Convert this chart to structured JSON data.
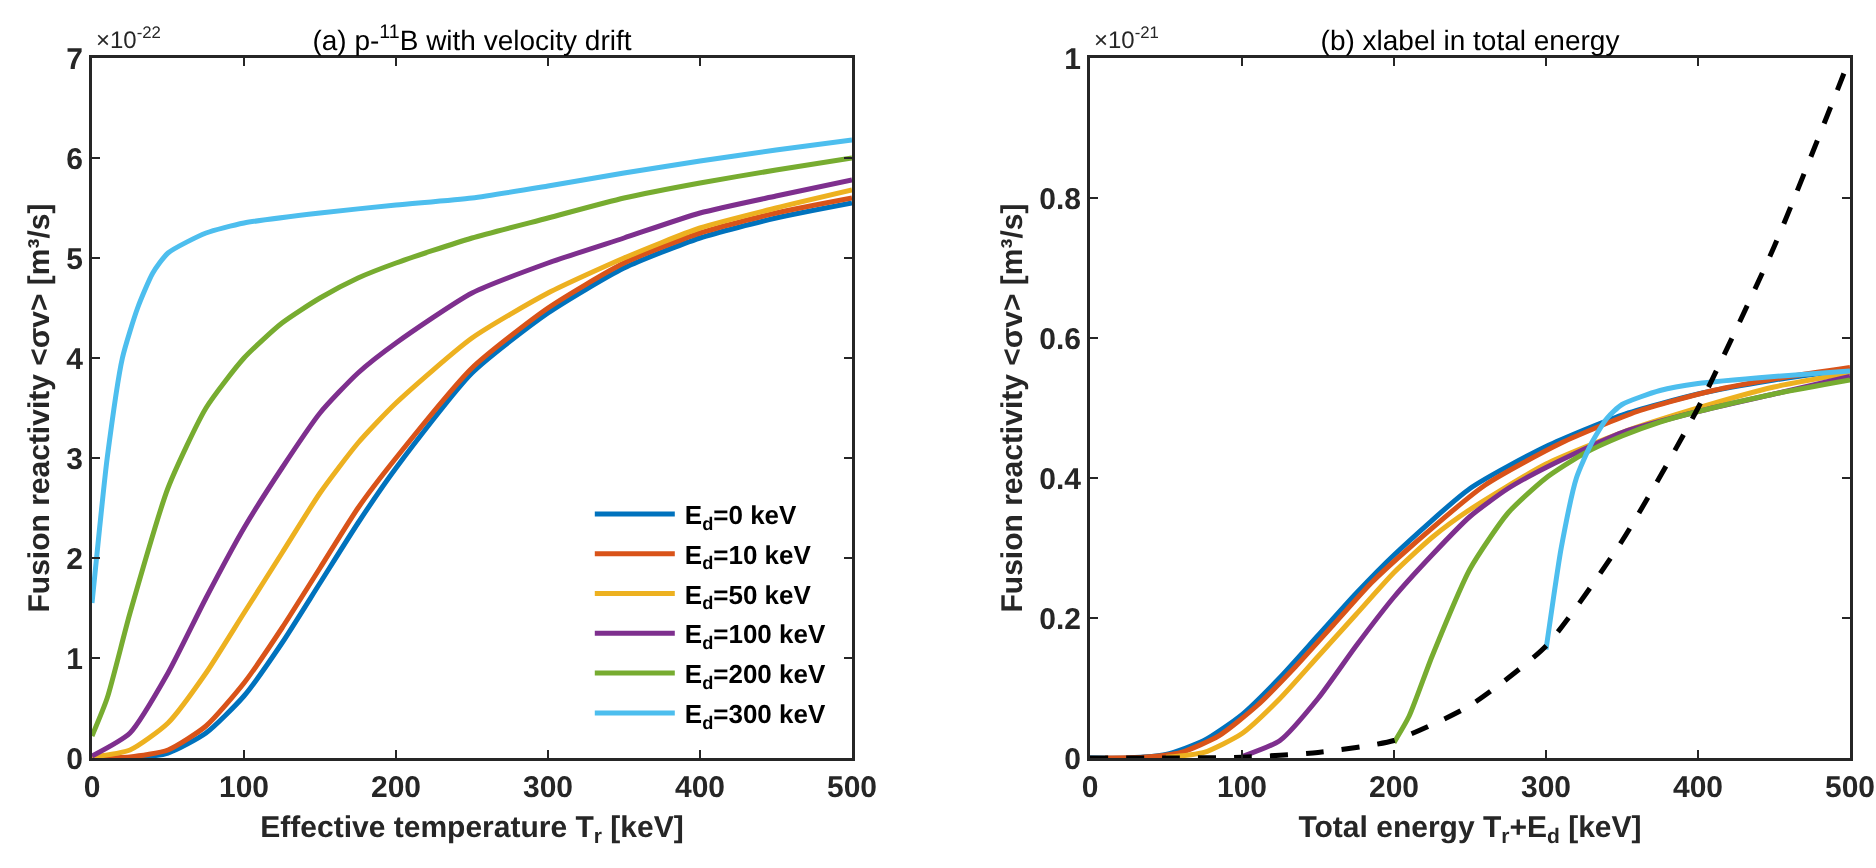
{
  "chart_data": [
    {
      "type": "line",
      "title": "(a) p-$^{11}$B with velocity drift",
      "xlabel": "Effective temperature T$_{r}$ [keV]",
      "ylabel": "Fusion reactivity <σv> [m³/s]",
      "annotations": [
        "×10$^{-22}$"
      ],
      "xlim": [
        0,
        500
      ],
      "xticks": [
        0,
        100,
        200,
        300,
        400,
        500
      ],
      "ylim": [
        0,
        7
      ],
      "yticks": [
        0,
        1,
        2,
        3,
        4,
        5,
        6,
        7
      ],
      "grid": false,
      "legend": "bottom right",
      "line_style": "solid",
      "series": [
        {
          "name": "E$_{d}$=0 keV",
          "color": "#0072bd",
          "x": [
            0,
            25,
            50,
            75,
            100,
            125,
            150,
            175,
            200,
            250,
            300,
            350,
            400,
            450,
            500
          ],
          "values": [
            0,
            0,
            0.05,
            0.25,
            0.62,
            1.15,
            1.75,
            2.35,
            2.9,
            3.85,
            4.45,
            4.9,
            5.2,
            5.4,
            5.55
          ]
        },
        {
          "name": "E$_{d}$=10 keV",
          "color": "#d95319",
          "x": [
            0,
            25,
            50,
            75,
            100,
            125,
            150,
            175,
            200,
            250,
            300,
            350,
            400,
            450,
            500
          ],
          "values": [
            0,
            0.01,
            0.08,
            0.32,
            0.75,
            1.3,
            1.9,
            2.5,
            3.0,
            3.9,
            4.5,
            4.95,
            5.25,
            5.45,
            5.6
          ]
        },
        {
          "name": "E$_{d}$=50 keV",
          "color": "#edb120",
          "x": [
            0,
            25,
            50,
            75,
            100,
            125,
            150,
            175,
            200,
            250,
            300,
            350,
            400,
            450,
            500
          ],
          "values": [
            0.01,
            0.08,
            0.35,
            0.85,
            1.45,
            2.05,
            2.65,
            3.15,
            3.55,
            4.2,
            4.65,
            5.0,
            5.3,
            5.5,
            5.68
          ]
        },
        {
          "name": "E$_{d}$=100 keV",
          "color": "#7e2f8e",
          "x": [
            0,
            25,
            50,
            75,
            100,
            125,
            150,
            175,
            200,
            250,
            300,
            350,
            400,
            450,
            500
          ],
          "values": [
            0.02,
            0.25,
            0.85,
            1.6,
            2.3,
            2.9,
            3.45,
            3.85,
            4.15,
            4.65,
            4.95,
            5.2,
            5.45,
            5.62,
            5.78
          ]
        },
        {
          "name": "E$_{d}$=200 keV",
          "color": "#77ac30",
          "x": [
            0,
            10,
            25,
            50,
            75,
            100,
            125,
            150,
            175,
            200,
            250,
            300,
            350,
            400,
            450,
            500
          ],
          "values": [
            0.22,
            0.6,
            1.45,
            2.7,
            3.5,
            4.0,
            4.35,
            4.6,
            4.8,
            4.95,
            5.2,
            5.4,
            5.6,
            5.75,
            5.88,
            6.0
          ]
        },
        {
          "name": "E$_{d}$=300 keV",
          "color": "#4dbeee",
          "x": [
            0,
            5,
            10,
            20,
            30,
            40,
            50,
            75,
            100,
            150,
            200,
            250,
            300,
            350,
            400,
            450,
            500
          ],
          "values": [
            1.55,
            2.3,
            3.0,
            4.0,
            4.5,
            4.85,
            5.05,
            5.25,
            5.35,
            5.45,
            5.53,
            5.6,
            5.72,
            5.85,
            5.97,
            6.08,
            6.18
          ]
        }
      ]
    },
    {
      "type": "line",
      "title": "(b) xlabel in total energy",
      "xlabel": "Total energy T$_{r}$+E$_{d}$ [keV]",
      "ylabel": "Fusion reactivity <σv> [m³/s]",
      "annotations": [
        "×10$^{-21}$"
      ],
      "xlim": [
        0,
        500
      ],
      "xticks": [
        0,
        100,
        200,
        300,
        400,
        500
      ],
      "ylim": [
        0,
        1
      ],
      "yticks": [
        0,
        0.2,
        0.4,
        0.6,
        0.8,
        1
      ],
      "grid": false,
      "line_style": "solid",
      "series": [
        {
          "color": "#0072bd",
          "x": [
            0,
            25,
            50,
            75,
            100,
            125,
            150,
            175,
            200,
            250,
            300,
            350,
            400,
            450,
            500
          ],
          "values": [
            0,
            0,
            0.005,
            0.025,
            0.062,
            0.115,
            0.175,
            0.235,
            0.29,
            0.385,
            0.445,
            0.49,
            0.52,
            0.54,
            0.555
          ]
        },
        {
          "color": "#d95319",
          "x": [
            10,
            35,
            60,
            85,
            110,
            135,
            160,
            185,
            210,
            260,
            310,
            360,
            410,
            460,
            500
          ],
          "values": [
            0,
            0.001,
            0.008,
            0.032,
            0.075,
            0.13,
            0.19,
            0.25,
            0.3,
            0.39,
            0.45,
            0.495,
            0.525,
            0.545,
            0.558
          ]
        },
        {
          "color": "#edb120",
          "x": [
            50,
            75,
            100,
            125,
            150,
            175,
            200,
            225,
            250,
            300,
            350,
            400,
            450,
            500
          ],
          "values": [
            0.001,
            0.008,
            0.035,
            0.085,
            0.145,
            0.205,
            0.265,
            0.315,
            0.355,
            0.42,
            0.465,
            0.5,
            0.53,
            0.55
          ]
        },
        {
          "color": "#7e2f8e",
          "x": [
            100,
            125,
            150,
            175,
            200,
            225,
            250,
            275,
            300,
            350,
            400,
            450,
            500
          ],
          "values": [
            0.002,
            0.025,
            0.085,
            0.16,
            0.23,
            0.29,
            0.345,
            0.385,
            0.415,
            0.465,
            0.495,
            0.52,
            0.545
          ]
        },
        {
          "color": "#77ac30",
          "x": [
            200,
            210,
            225,
            250,
            275,
            300,
            325,
            350,
            375,
            400,
            450,
            500
          ],
          "values": [
            0.022,
            0.06,
            0.145,
            0.27,
            0.35,
            0.4,
            0.435,
            0.46,
            0.48,
            0.495,
            0.52,
            0.54
          ]
        },
        {
          "color": "#4dbeee",
          "x": [
            300,
            305,
            310,
            320,
            330,
            340,
            350,
            375,
            400,
            450,
            500
          ],
          "values": [
            0.155,
            0.23,
            0.3,
            0.4,
            0.45,
            0.485,
            0.505,
            0.525,
            0.535,
            0.545,
            0.553
          ]
        },
        {
          "color": "#000000",
          "line_style": "dashed",
          "x": [
            0,
            50,
            100,
            150,
            200,
            250,
            300,
            350,
            400,
            450,
            500
          ],
          "values": [
            0,
            0,
            0.001,
            0.008,
            0.025,
            0.075,
            0.16,
            0.31,
            0.5,
            0.73,
            1.0
          ]
        }
      ]
    }
  ]
}
